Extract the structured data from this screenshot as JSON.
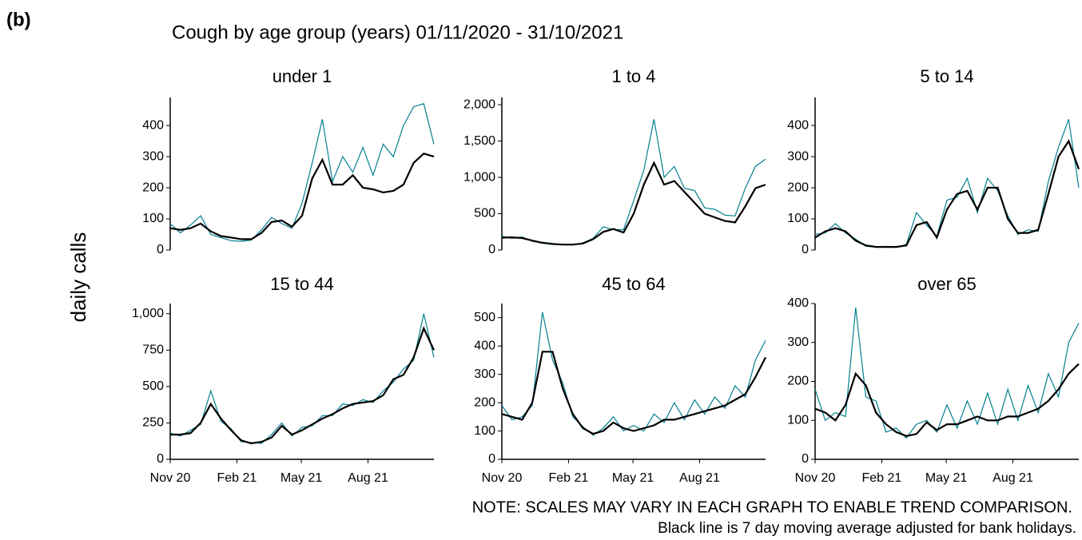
{
  "figure": {
    "label": "(b)",
    "title": "Cough by age group (years) 01/11/2020 - 31/10/2021",
    "ylabel": "daily calls",
    "notes": [
      "NOTE: SCALES MAY VARY IN EACH GRAPH TO ENABLE TREND COMPARISON.",
      "Black line is 7 day moving average adjusted for bank holidays."
    ]
  },
  "chart_data": [
    {
      "type": "line",
      "title": "under 1",
      "xaxis": false,
      "x": [
        0,
        14,
        28,
        42,
        56,
        70,
        84,
        98,
        112,
        126,
        140,
        154,
        168,
        182,
        196,
        210,
        224,
        238,
        252,
        266,
        280,
        294,
        308,
        322,
        336,
        350,
        364
      ],
      "xlim": [
        0,
        364
      ],
      "ylim": [
        0,
        490
      ],
      "yticks": [
        0,
        100,
        200,
        300,
        400
      ],
      "series": [
        {
          "color": "#00808f",
          "values": [
            85,
            55,
            80,
            110,
            50,
            40,
            30,
            28,
            32,
            65,
            105,
            85,
            70,
            150,
            280,
            420,
            220,
            300,
            250,
            330,
            240,
            340,
            300,
            400,
            460,
            470,
            340
          ]
        },
        {
          "color": "#000000",
          "values": [
            70,
            65,
            70,
            85,
            60,
            45,
            40,
            35,
            35,
            55,
            90,
            95,
            75,
            110,
            230,
            290,
            210,
            210,
            240,
            200,
            195,
            185,
            190,
            210,
            280,
            310,
            300
          ]
        }
      ]
    },
    {
      "type": "line",
      "title": "1 to 4",
      "xaxis": false,
      "x": [
        0,
        14,
        28,
        42,
        56,
        70,
        84,
        98,
        112,
        126,
        140,
        154,
        168,
        182,
        196,
        210,
        224,
        238,
        252,
        266,
        280,
        294,
        308,
        322,
        336,
        350,
        364
      ],
      "xlim": [
        0,
        364
      ],
      "ylim": [
        0,
        2100
      ],
      "yticks": [
        0,
        500,
        {
          "value": 1000,
          "label": "1,000"
        },
        {
          "value": 1500,
          "label": "1,500"
        },
        {
          "value": 2000,
          "label": "2,000"
        }
      ],
      "series": [
        {
          "color": "#00808f",
          "values": [
            190,
            160,
            180,
            120,
            95,
            75,
            80,
            70,
            100,
            160,
            320,
            280,
            280,
            680,
            1100,
            1800,
            1000,
            1150,
            850,
            820,
            580,
            560,
            480,
            470,
            850,
            1150,
            1250
          ]
        },
        {
          "color": "#000000",
          "values": [
            170,
            175,
            165,
            130,
            100,
            85,
            75,
            75,
            90,
            150,
            250,
            290,
            240,
            500,
            900,
            1200,
            900,
            950,
            800,
            650,
            500,
            450,
            400,
            380,
            600,
            850,
            900
          ]
        }
      ]
    },
    {
      "type": "line",
      "title": "5 to 14",
      "xaxis": false,
      "x": [
        0,
        14,
        28,
        42,
        56,
        70,
        84,
        98,
        112,
        126,
        140,
        154,
        168,
        182,
        196,
        210,
        224,
        238,
        252,
        266,
        280,
        294,
        308,
        322,
        336,
        350,
        364
      ],
      "xlim": [
        0,
        364
      ],
      "ylim": [
        0,
        490
      ],
      "yticks": [
        0,
        100,
        200,
        300,
        400
      ],
      "series": [
        {
          "color": "#00808f",
          "values": [
            50,
            55,
            85,
            55,
            35,
            12,
            10,
            12,
            8,
            18,
            120,
            80,
            45,
            160,
            170,
            230,
            120,
            230,
            190,
            110,
            50,
            65,
            60,
            220,
            330,
            420,
            200
          ]
        },
        {
          "color": "#000000",
          "values": [
            40,
            60,
            70,
            60,
            30,
            15,
            10,
            10,
            10,
            15,
            80,
            90,
            40,
            130,
            180,
            190,
            130,
            200,
            200,
            100,
            55,
            55,
            65,
            180,
            300,
            350,
            260
          ]
        }
      ]
    },
    {
      "type": "line",
      "title": "15 to 44",
      "xaxis": true,
      "x": [
        0,
        14,
        28,
        42,
        56,
        70,
        84,
        98,
        112,
        126,
        140,
        154,
        168,
        182,
        196,
        210,
        224,
        238,
        252,
        266,
        280,
        294,
        308,
        322,
        336,
        350,
        364
      ],
      "xlim": [
        0,
        364
      ],
      "ylim": [
        0,
        1070
      ],
      "yticks": [
        0,
        250,
        500,
        750,
        {
          "value": 1000,
          "label": "1,000"
        }
      ],
      "xticks": [
        {
          "value": 0,
          "label": "Nov 20"
        },
        {
          "value": 92,
          "label": "Feb 21"
        },
        {
          "value": 181,
          "label": "May 21"
        },
        {
          "value": 273,
          "label": "Aug 21"
        }
      ],
      "series": [
        {
          "color": "#00808f",
          "values": [
            180,
            160,
            200,
            240,
            470,
            260,
            210,
            120,
            115,
            110,
            170,
            250,
            160,
            220,
            230,
            300,
            300,
            380,
            370,
            410,
            390,
            470,
            530,
            620,
            680,
            1000,
            700
          ]
        },
        {
          "color": "#000000",
          "values": [
            170,
            170,
            180,
            250,
            380,
            280,
            200,
            130,
            110,
            120,
            150,
            230,
            170,
            200,
            240,
            280,
            310,
            350,
            380,
            390,
            400,
            440,
            550,
            580,
            700,
            900,
            750
          ]
        }
      ]
    },
    {
      "type": "line",
      "title": "45 to 64",
      "xaxis": true,
      "x": [
        0,
        14,
        28,
        42,
        56,
        70,
        84,
        98,
        112,
        126,
        140,
        154,
        168,
        182,
        196,
        210,
        224,
        238,
        252,
        266,
        280,
        294,
        308,
        322,
        336,
        350,
        364
      ],
      "xlim": [
        0,
        364
      ],
      "ylim": [
        0,
        550
      ],
      "yticks": [
        0,
        100,
        200,
        300,
        400,
        500
      ],
      "xticks": [
        {
          "value": 0,
          "label": "Nov 20"
        },
        {
          "value": 92,
          "label": "Feb 21"
        },
        {
          "value": 181,
          "label": "May 21"
        },
        {
          "value": 273,
          "label": "Aug 21"
        }
      ],
      "series": [
        {
          "color": "#00808f",
          "values": [
            190,
            140,
            150,
            190,
            520,
            350,
            270,
            150,
            115,
            85,
            110,
            150,
            100,
            120,
            100,
            160,
            130,
            200,
            140,
            210,
            160,
            220,
            180,
            260,
            220,
            350,
            420
          ]
        },
        {
          "color": "#000000",
          "values": [
            160,
            150,
            140,
            200,
            380,
            380,
            250,
            160,
            110,
            90,
            100,
            130,
            110,
            100,
            110,
            120,
            140,
            140,
            150,
            160,
            170,
            180,
            190,
            210,
            230,
            290,
            360
          ]
        }
      ]
    },
    {
      "type": "line",
      "title": "over 65",
      "xaxis": true,
      "x": [
        0,
        14,
        28,
        42,
        56,
        70,
        84,
        98,
        112,
        126,
        140,
        154,
        168,
        182,
        196,
        210,
        224,
        238,
        252,
        266,
        280,
        294,
        308,
        322,
        336,
        350,
        364
      ],
      "xlim": [
        0,
        364
      ],
      "ylim": [
        0,
        400
      ],
      "yticks": [
        0,
        100,
        200,
        300,
        400
      ],
      "xticks": [
        {
          "value": 0,
          "label": "Nov 20"
        },
        {
          "value": 92,
          "label": "Feb 21"
        },
        {
          "value": 181,
          "label": "May 21"
        },
        {
          "value": 273,
          "label": "Aug 21"
        }
      ],
      "series": [
        {
          "color": "#00808f",
          "values": [
            180,
            100,
            120,
            110,
            390,
            160,
            150,
            70,
            80,
            55,
            90,
            100,
            70,
            140,
            80,
            150,
            90,
            170,
            90,
            180,
            100,
            190,
            120,
            220,
            160,
            300,
            350
          ]
        },
        {
          "color": "#000000",
          "values": [
            130,
            120,
            100,
            140,
            220,
            190,
            120,
            90,
            70,
            60,
            65,
            95,
            75,
            90,
            90,
            100,
            110,
            100,
            100,
            110,
            110,
            120,
            130,
            150,
            180,
            220,
            245
          ]
        }
      ]
    }
  ]
}
